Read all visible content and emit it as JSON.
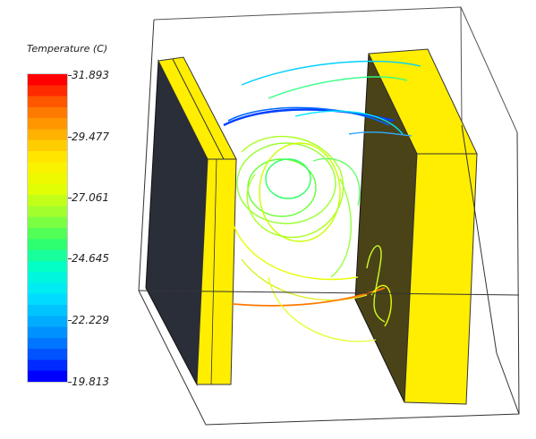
{
  "legend": {
    "title": "Temperature (C)",
    "max": 31.893,
    "min": 19.813,
    "ticks": [
      "31.893",
      "29.477",
      "27.061",
      "24.645",
      "22.229",
      "19.813"
    ],
    "colormap": [
      "#0000ff",
      "#0066ff",
      "#00aaff",
      "#00e5ff",
      "#00ffcc",
      "#33ff66",
      "#99ff33",
      "#e6ff00",
      "#ffee00",
      "#ffb000",
      "#ff6a00",
      "#ff0000"
    ]
  },
  "scene": {
    "plate_color": "#ffee00",
    "plate_shadow_color": "#2a2e38",
    "box_edge_color": "#333333"
  }
}
